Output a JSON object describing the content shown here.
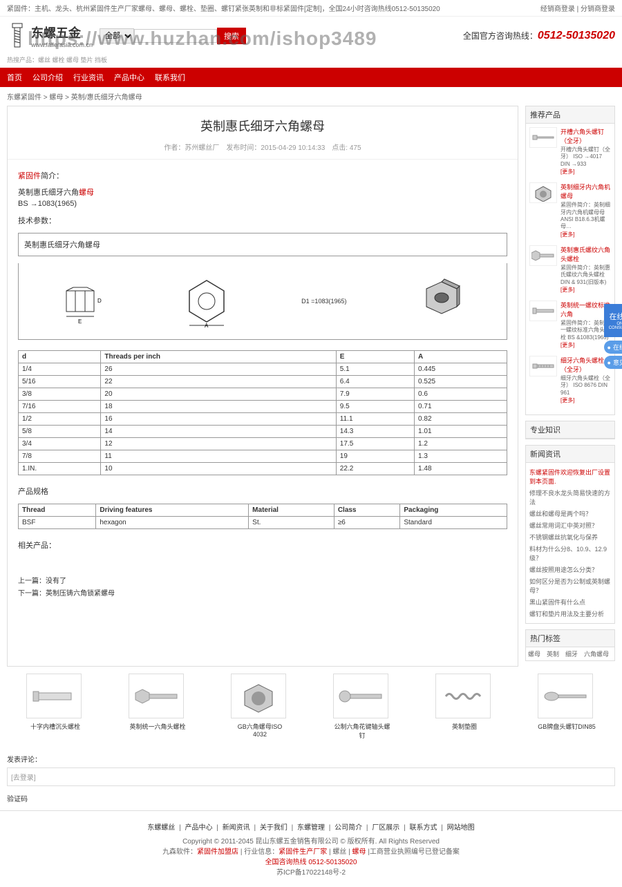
{
  "watermark": "https://www.huzhan.com/ishop3489",
  "topbar": {
    "left": "紧固件：主机、龙头、杭州紧固件生产厂家螺母、螺母、螺栓、垫圈、螺钉紧张英制和非标紧固件[定制]，全国24小时咨询热线0512-50135020",
    "right_login": "经销商登录",
    "right_agent": "分销商登录"
  },
  "logo": {
    "cn": "东螺五金",
    "url": "www.fallerasia.com.cn"
  },
  "search": {
    "category": "全部分类",
    "placeholder": "",
    "btn": "搜索"
  },
  "hotline": {
    "label": "全国官方咨询热线：",
    "num": "0512-50135020"
  },
  "subheader": "热搜产品：螺丝 螺栓 螺母 垫片 挡板",
  "nav": [
    "首页",
    "公司介绍",
    "行业资讯",
    "产品中心",
    "联系我们"
  ],
  "breadcrumb": "东螺紧固件 > 螺母 > 英制/惠氏细牙六角螺母",
  "article": {
    "title": "英制惠氏细牙六角螺母",
    "meta": "作者：苏州螺丝厂　发布时间：2015-04-29 10:14:33　点击: 475",
    "intro_label": "紧固件",
    "intro_suffix": "简介：",
    "intro_line1_a": "英制惠氏细牙六角",
    "intro_line1_b": "螺母",
    "intro_line2": "BS →1083(1965)",
    "spec_label": "技术参数：",
    "spec_title": "英制惠氏细牙六角螺母",
    "dim_label": "D1 =1083(1965)"
  },
  "spec_table": {
    "headers": [
      "d",
      "Threads per inch",
      "E",
      "A"
    ],
    "rows": [
      [
        "1/4",
        "26",
        "5.1",
        "0.445"
      ],
      [
        "5/16",
        "22",
        "6.4",
        "0.525"
      ],
      [
        "3/8",
        "20",
        "7.9",
        "0.6"
      ],
      [
        "7/16",
        "18",
        "9.5",
        "0.71"
      ],
      [
        "1/2",
        "16",
        "11.1",
        "0.82"
      ],
      [
        "5/8",
        "14",
        "14.3",
        "1.01"
      ],
      [
        "3/4",
        "12",
        "17.5",
        "1.2"
      ],
      [
        "7/8",
        "11",
        "19",
        "1.3"
      ],
      [
        "1.IN.",
        "10",
        "22.2",
        "1.48"
      ]
    ]
  },
  "prod_spec": {
    "title": "产品规格",
    "headers": [
      "Thread",
      "Driving features",
      "Material",
      "Class",
      "Packaging"
    ],
    "row": [
      "BSF",
      "hexagon",
      "St.",
      "≥6",
      "Standard"
    ]
  },
  "related_label": "相关产品：",
  "prev_next": {
    "prev_label": "上一篇：",
    "prev": "没有了",
    "next_label": "下一篇：",
    "next": "英制压铸六角锁紧螺母"
  },
  "sidebar": {
    "recommend": {
      "title": "推荐产品",
      "items": [
        {
          "name": "开槽六角头螺钉（全牙）",
          "desc": "开槽六角头螺钉（全牙） ISO →4017 DIN →933",
          "more": "[更多]"
        },
        {
          "name": "英制细牙内六角机螺母",
          "desc": "紧固件简介：英制细牙内六角机螺母母 ANSI B18.6.3机螺母…",
          "more": "[更多]"
        },
        {
          "name": "英制惠氏螺纹六角头螺栓",
          "desc": "紧固件简介：英制惠氏螺纹六角头螺栓 DIN &amp; 931(旧版本)",
          "more": "[更多]"
        },
        {
          "name": "英制统一螺纹标准六角",
          "desc": "紧固件简介：英制统一螺纹标准六角头螺栓 BS &amp;1083(1965)",
          "more": "[更多]"
        },
        {
          "name": "细牙六角头螺栓（全牙）",
          "desc": "细牙六角头螺栓（全牙） ISO 8676 DIN 961",
          "more": "[更多]"
        }
      ]
    },
    "knowledge": {
      "title": "专业知识"
    },
    "news": {
      "title": "新闻资讯",
      "items": [
        {
          "text": "东螺紧固件欢迎恢复出厂设置到本页面.",
          "hot": true
        },
        {
          "text": "修理不良水龙头简易快速的方法"
        },
        {
          "text": "螺丝和螺母是两个吗？"
        },
        {
          "text": "螺丝常用词汇中英对照？"
        },
        {
          "text": "不锈钢螺丝抗氧化与保养"
        },
        {
          "text": "料材为什么分8、10.9、12.9级？"
        },
        {
          "text": "螺丝按照用途怎么分类？"
        },
        {
          "text": "如何区分是否为公制或英制螺母？"
        },
        {
          "text": "黑山紧固件有什么点"
        },
        {
          "text": "螺钉和垫片用法及主要分析"
        }
      ]
    },
    "hottags": {
      "title": "热门标签",
      "tags": "螺母　英制　细牙　六角螺母"
    }
  },
  "related_products": {
    "items": [
      {
        "name": "十字内槽沉头螺栓"
      },
      {
        "name": "英制统一六角头螺栓"
      },
      {
        "name": "GB六角螺母ISO 4032"
      },
      {
        "name": "公制六角花键轴头螺钉"
      },
      {
        "name": "英制垫圈"
      },
      {
        "name": "GB牌盘头螺钉DIN85"
      }
    ]
  },
  "comments": {
    "title": "发表评论：",
    "login_hint": "[去登录]",
    "captcha": "验证码"
  },
  "footer": {
    "links": [
      "东螺螺丝",
      "产品中心",
      "新闻资讯",
      "关于我们",
      "东螺管理",
      "公司简介",
      "厂区展示",
      "联系方式",
      "网站地图"
    ],
    "copyright": "Copyright © 2011-2045 昆山东螺五金销售有限公司 © 版权所有. All Rights Reserved",
    "line3_a": "九森软件：",
    "line3_b": "紧固件加盟店",
    "line3_c": " | 行业信息：",
    "line3_d": "紧固件生产厂家",
    "line3_e": " | 螺丝 | ",
    "line3_f": "螺母",
    "line3_g": "  |工商营业执照编号已登记备案",
    "hotline": "全国咨询热线 0512-50135020",
    "icp": "苏ICP备17022148号-2"
  },
  "float": {
    "consult": "在线咨询",
    "sub": "ONLINE CONSULTATION",
    "btn1": "在线客服",
    "btn2": "意见/BUG反馈"
  }
}
